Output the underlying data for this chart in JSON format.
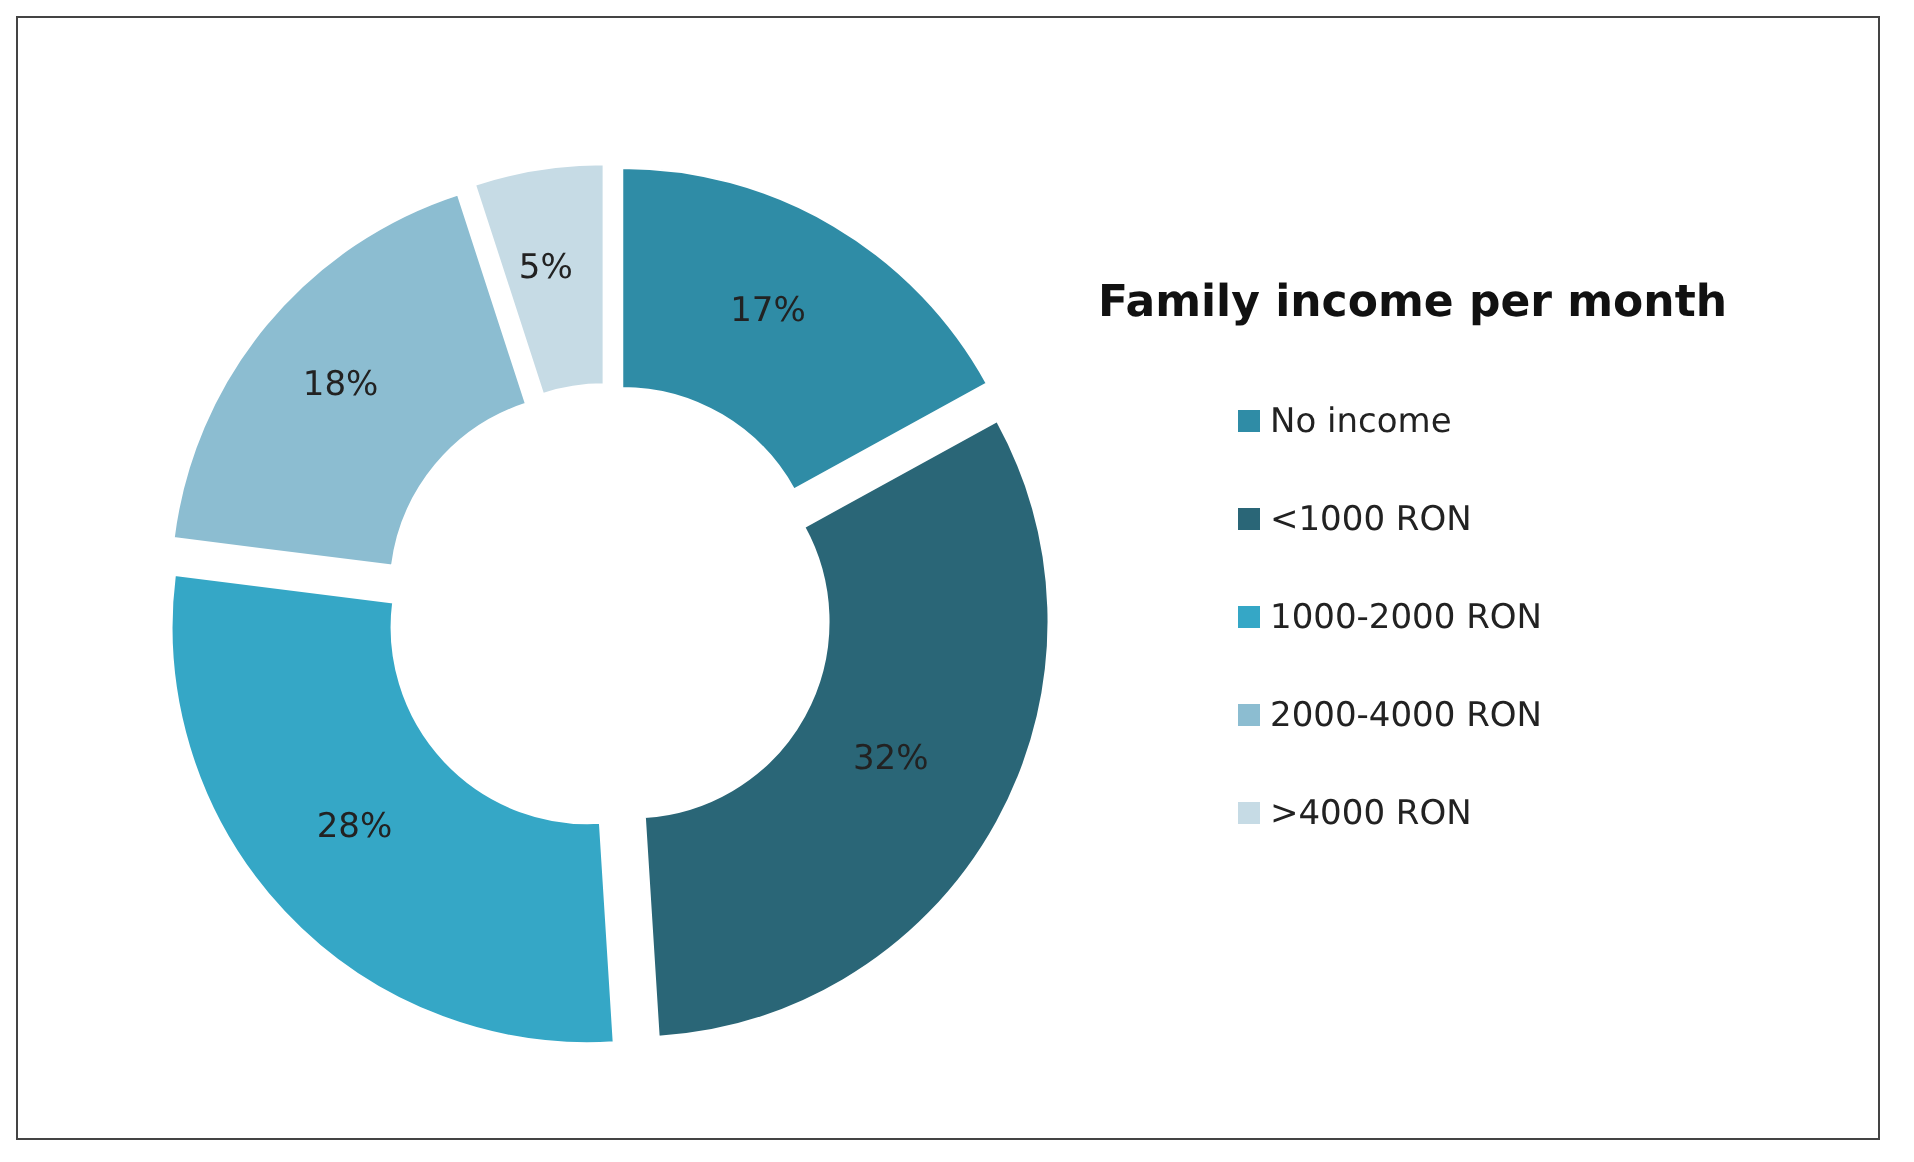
{
  "chart_data": {
    "type": "donut",
    "legend_title": "Family income per month",
    "categories": [
      "No income",
      "<1000 RON",
      "1000-2000 RON",
      "2000-4000 RON",
      ">4000 RON"
    ],
    "values": [
      17,
      32,
      28,
      18,
      5
    ],
    "colors": [
      "#2f8ca6",
      "#2a6677",
      "#35a7c6",
      "#8cbdd1",
      "#c6dbe5"
    ],
    "value_labels": [
      "17%",
      "32%",
      "28%",
      "18%",
      "5%"
    ],
    "legend": "right"
  }
}
